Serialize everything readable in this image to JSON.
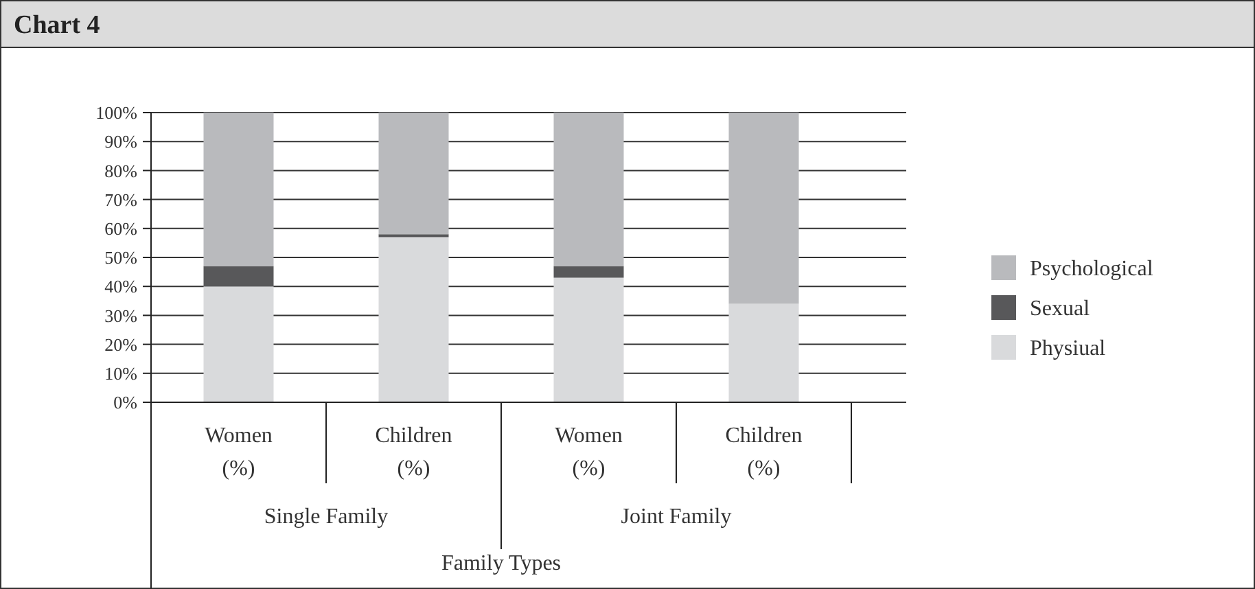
{
  "chart_data": {
    "type": "bar",
    "title": "Chart 4",
    "xlabel": "Family Types",
    "stacked": true,
    "categories": [
      "Women (%)",
      "Children (%)",
      "Women (%)",
      "Children (%)"
    ],
    "annotations": [
      "Single Family",
      "Joint Family"
    ],
    "series": [
      {
        "name": "Physiual",
        "color": "#d9dadc",
        "values": [
          40,
          57,
          43,
          34
        ]
      },
      {
        "name": "Sexual",
        "color": "#58585a",
        "values": [
          7,
          1,
          4,
          0
        ]
      },
      {
        "name": "Psychological",
        "color": "#b9babd",
        "values": [
          53,
          42,
          53,
          66
        ]
      }
    ],
    "ylim": [
      0,
      100
    ],
    "yticks": [
      {
        "value": 0,
        "label": "0%"
      },
      {
        "value": 10,
        "label": "10%"
      },
      {
        "value": 20,
        "label": "20%"
      },
      {
        "value": 30,
        "label": "30%"
      },
      {
        "value": 40,
        "label": "40%"
      },
      {
        "value": 50,
        "label": "50%"
      },
      {
        "value": 60,
        "label": "60%"
      },
      {
        "value": 70,
        "label": "70%"
      },
      {
        "value": 80,
        "label": "80%"
      },
      {
        "value": 90,
        "label": "90%"
      },
      {
        "value": 100,
        "label": "100%"
      }
    ],
    "grid": "y",
    "legend": "right"
  }
}
